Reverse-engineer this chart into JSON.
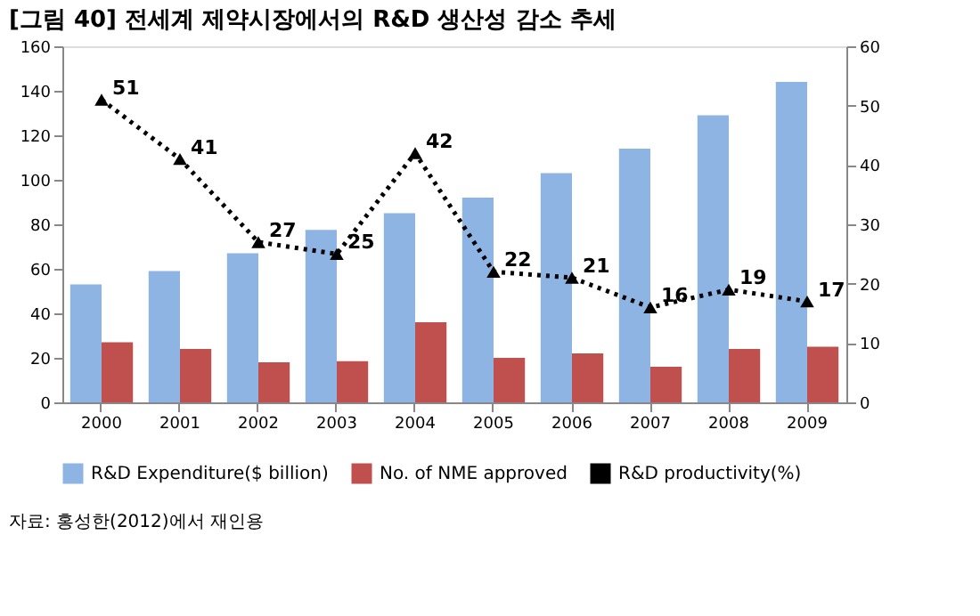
{
  "chart_data": {
    "type": "bar",
    "title": "[그림 40] 전세계 제약시장에서의 R&D 생산성 감소 추세",
    "categories": [
      "2000",
      "2001",
      "2002",
      "2003",
      "2004",
      "2005",
      "2006",
      "2007",
      "2008",
      "2009"
    ],
    "series": [
      {
        "name": "R&D Expenditure($ billion)",
        "color": "#8eb4e3",
        "values": [
          53,
          59,
          67,
          77.5,
          85,
          92,
          103,
          114,
          129,
          144
        ]
      },
      {
        "name": "No. of NME approved",
        "color": "#c0504d",
        "values": [
          27,
          24,
          18,
          18.5,
          36,
          20,
          22,
          16,
          24,
          25
        ]
      },
      {
        "name": "R&D productivity(%)",
        "type": "line",
        "axis": "y2",
        "color": "#000000",
        "marker": "triangle",
        "line_style": "dotted",
        "values": [
          51,
          41,
          27,
          25,
          42,
          22,
          21,
          16,
          19,
          17
        ],
        "value_labels": [
          "51",
          "41",
          "27",
          "25",
          "42",
          "22",
          "21",
          "16",
          "19",
          "17"
        ]
      }
    ],
    "ylim": [
      0,
      160
    ],
    "yticks": [
      0,
      20,
      40,
      60,
      80,
      100,
      120,
      140,
      160
    ],
    "y2lim": [
      0,
      60
    ],
    "y2ticks": [
      0,
      10,
      20,
      30,
      40,
      50,
      60
    ],
    "grid": false,
    "legend": "bottom",
    "annotations": [
      "자료: 홍성한(2012)에서 재인용"
    ]
  }
}
